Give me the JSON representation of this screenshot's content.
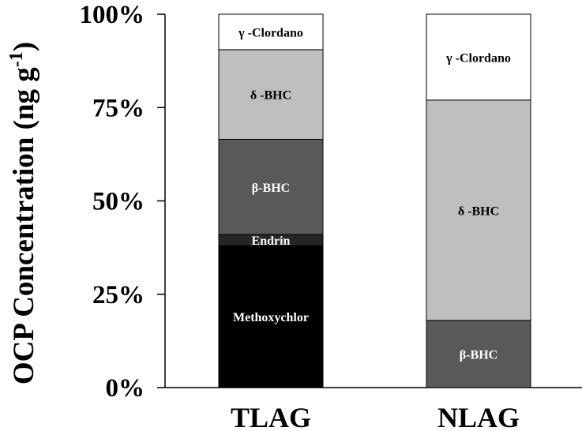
{
  "chart_data": {
    "type": "bar",
    "stacked": true,
    "categories": [
      "TLAG",
      "NLAG"
    ],
    "ylabel": "OCP Concentration (ng g",
    "ylabel_sup": "-1",
    "ylabel_suffix": ")",
    "ylim": [
      0,
      100
    ],
    "yticks": [
      "0%",
      "25%",
      "50%",
      "75%",
      "100%"
    ],
    "grid": false,
    "legend": "none",
    "series": [
      {
        "name": "Methoxychlor",
        "color": "#000000",
        "label_color": "#ffffff",
        "values": [
          38,
          0
        ]
      },
      {
        "name": "Endrin",
        "color": "#262626",
        "label_color": "#ffffff",
        "values": [
          3,
          0
        ]
      },
      {
        "name": "β-BHC",
        "color": "#595959",
        "label_color": "#ffffff",
        "values": [
          25.5,
          18
        ]
      },
      {
        "name": "δ -BHC",
        "color": "#bfbfbf",
        "label_color": "#000000",
        "values": [
          24,
          59
        ]
      },
      {
        "name": "γ -Clordano",
        "color": "#ffffff",
        "label_color": "#000000",
        "values": [
          9.5,
          23
        ]
      }
    ]
  }
}
